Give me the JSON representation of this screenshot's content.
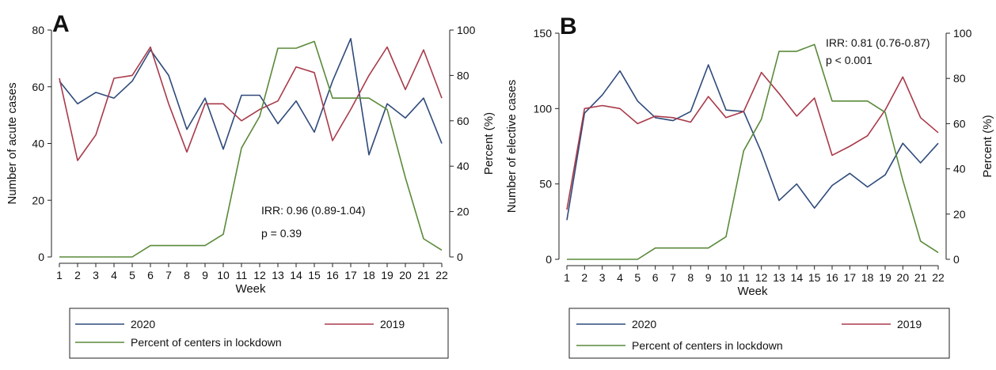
{
  "chart_data": [
    {
      "type": "line",
      "panel_label": "A",
      "xlabel": "Week",
      "ylabel": "Number of acute cases",
      "y2label": "Percent (%)",
      "x": [
        1,
        2,
        3,
        4,
        5,
        6,
        7,
        8,
        9,
        10,
        11,
        12,
        13,
        14,
        15,
        16,
        17,
        18,
        19,
        20,
        21,
        22
      ],
      "ylim": [
        0,
        80
      ],
      "yticks": [
        0,
        20,
        40,
        60,
        80
      ],
      "y2lim": [
        0,
        100
      ],
      "y2ticks": [
        0,
        20,
        40,
        60,
        80,
        100
      ],
      "series": [
        {
          "name": "2020",
          "axis": "left",
          "color": "#2e4a7a",
          "values": [
            62,
            54,
            58,
            56,
            62,
            73,
            64,
            45,
            56,
            38,
            57,
            57,
            47,
            55,
            44,
            62,
            77,
            36,
            54,
            49,
            56,
            40
          ]
        },
        {
          "name": "2019",
          "axis": "left",
          "color": "#a83a4a",
          "values": [
            63,
            34,
            43,
            63,
            64,
            74,
            54,
            37,
            54,
            54,
            48,
            52,
            55,
            67,
            65,
            41,
            52,
            64,
            74,
            59,
            73,
            56
          ]
        },
        {
          "name": "Percent of centers in lockdown",
          "axis": "right",
          "color": "#5a8a3a",
          "values": [
            0,
            0,
            0,
            0,
            0,
            5,
            5,
            5,
            5,
            10,
            48,
            62,
            92,
            92,
            95,
            70,
            70,
            70,
            65,
            35,
            8,
            3
          ]
        }
      ],
      "annotation": [
        "IRR: 0.96 (0.89-1.04)",
        "p = 0.39"
      ],
      "legend": [
        "2020",
        "2019",
        "Percent of centers in lockdown"
      ]
    },
    {
      "type": "line",
      "panel_label": "B",
      "xlabel": "Week",
      "ylabel": "Number of elective cases",
      "y2label": "Percent (%)",
      "x": [
        1,
        2,
        3,
        4,
        5,
        6,
        7,
        8,
        9,
        10,
        11,
        12,
        13,
        14,
        15,
        16,
        17,
        18,
        19,
        20,
        21,
        22
      ],
      "ylim": [
        0,
        150
      ],
      "yticks": [
        0,
        50,
        100,
        150
      ],
      "y2lim": [
        0,
        100
      ],
      "y2ticks": [
        0,
        20,
        40,
        60,
        80,
        100
      ],
      "series": [
        {
          "name": "2020",
          "axis": "left",
          "color": "#2e4a7a",
          "values": [
            26,
            97,
            109,
            125,
            105,
            94,
            92,
            98,
            129,
            99,
            98,
            71,
            39,
            50,
            34,
            49,
            57,
            48,
            56,
            77,
            64,
            77
          ]
        },
        {
          "name": "2019",
          "axis": "left",
          "color": "#a83a4a",
          "values": [
            33,
            100,
            102,
            100,
            90,
            95,
            94,
            91,
            108,
            94,
            98,
            124,
            110,
            95,
            107,
            69,
            75,
            82,
            99,
            121,
            94,
            84
          ]
        },
        {
          "name": "Percent of centers in lockdown",
          "axis": "right",
          "color": "#5a8a3a",
          "values": [
            0,
            0,
            0,
            0,
            0,
            5,
            5,
            5,
            5,
            10,
            48,
            62,
            92,
            92,
            95,
            70,
            70,
            70,
            65,
            35,
            8,
            3
          ]
        }
      ],
      "annotation": [
        "IRR: 0.81 (0.76-0.87)",
        "p < 0.001"
      ],
      "legend": [
        "2020",
        "2019",
        "Percent of centers in lockdown"
      ]
    }
  ]
}
